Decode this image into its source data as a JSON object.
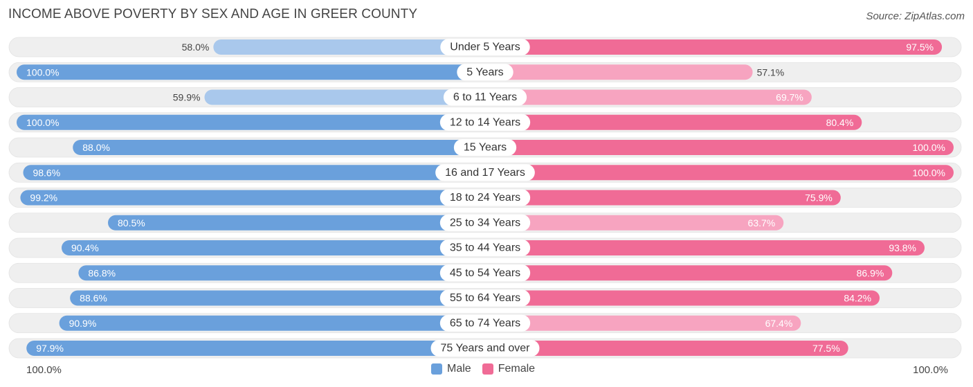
{
  "title": "INCOME ABOVE POVERTY BY SEX AND AGE IN GREER COUNTY",
  "source": "Source: ZipAtlas.com",
  "colors": {
    "male_strong": "#6aa0dc",
    "male_light": "#a9c8ec",
    "female_strong": "#f06b96",
    "female_light": "#f7a4c0",
    "track": "#efefef"
  },
  "chart_data": {
    "type": "bar",
    "orientation": "horizontal-diverging",
    "title": "INCOME ABOVE POVERTY BY SEX AND AGE IN GREER COUNTY",
    "categories": [
      "Under 5 Years",
      "5 Years",
      "6 to 11 Years",
      "12 to 14 Years",
      "15 Years",
      "16 and 17 Years",
      "18 to 24 Years",
      "25 to 34 Years",
      "35 to 44 Years",
      "45 to 54 Years",
      "55 to 64 Years",
      "65 to 74 Years",
      "75 Years and over"
    ],
    "series": [
      {
        "name": "Male",
        "values": [
          58.0,
          100.0,
          59.9,
          100.0,
          88.0,
          98.6,
          99.2,
          80.5,
          90.4,
          86.8,
          88.6,
          90.9,
          97.9
        ],
        "labels": [
          "58.0%",
          "100.0%",
          "59.9%",
          "100.0%",
          "88.0%",
          "98.6%",
          "99.2%",
          "80.5%",
          "90.4%",
          "86.8%",
          "88.6%",
          "90.9%",
          "97.9%"
        ]
      },
      {
        "name": "Female",
        "values": [
          97.5,
          57.1,
          69.7,
          80.4,
          100.0,
          100.0,
          75.9,
          63.7,
          93.8,
          86.9,
          84.2,
          67.4,
          77.5
        ],
        "labels": [
          "97.5%",
          "57.1%",
          "69.7%",
          "80.4%",
          "100.0%",
          "100.0%",
          "75.9%",
          "63.7%",
          "93.8%",
          "86.9%",
          "84.2%",
          "67.4%",
          "77.5%"
        ]
      }
    ],
    "xlim": [
      0,
      100
    ],
    "axis_left_label": "100.0%",
    "axis_right_label": "100.0%",
    "legend": [
      "Male",
      "Female"
    ],
    "legend_position": "bottom-center"
  }
}
